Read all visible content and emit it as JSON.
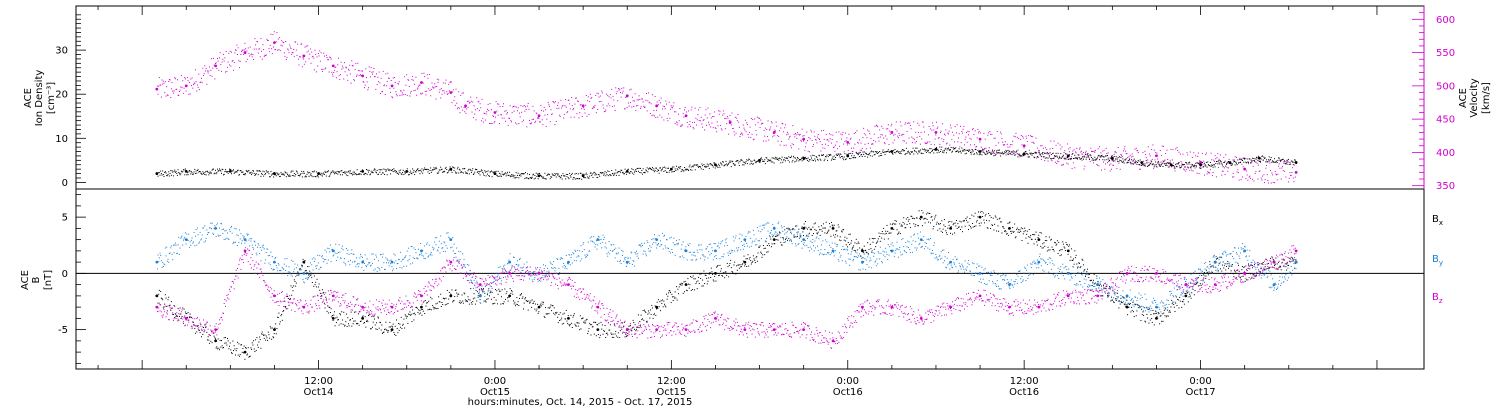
{
  "chart_data": [
    {
      "type": "scatter",
      "panel": "density-velocity",
      "ylabel_left": [
        "ACE",
        "Ion Density",
        "[cm⁻³]"
      ],
      "ylabel_right": [
        "ACE",
        "Velocity",
        "[km/s]"
      ],
      "ylim_left": [
        -1.5,
        40
      ],
      "ylim_right": [
        345,
        620
      ],
      "yticks_left": [
        "0",
        "10",
        "20",
        "30"
      ],
      "yticks_right": [
        "350",
        "400",
        "450",
        "500",
        "550",
        "600"
      ],
      "series": [
        {
          "color": "#000000",
          "axis": "left",
          "x": [
            1.0,
            3,
            6,
            9,
            12,
            15,
            18,
            21,
            24,
            27,
            30,
            33,
            36,
            39,
            42,
            45,
            48,
            51,
            54,
            57,
            60,
            63,
            66,
            68,
            70,
            72,
            74,
            76,
            78.5
          ],
          "y": [
            2.0,
            2.5,
            2.5,
            2.0,
            2.0,
            2.5,
            2.5,
            3.0,
            2.0,
            1.5,
            1.5,
            2.5,
            3.0,
            4.0,
            5.0,
            5.5,
            6.0,
            7.0,
            7.5,
            7.0,
            6.5,
            6.0,
            5.5,
            4.5,
            4.0,
            4.0,
            4.5,
            5.5,
            4.5
          ]
        },
        {
          "color": "#d000d0",
          "axis": "right",
          "x": [
            1.0,
            3,
            5,
            7,
            9,
            11,
            13,
            15,
            17,
            19,
            21,
            22,
            24,
            27,
            30,
            33,
            35,
            37,
            40,
            43,
            45,
            48,
            51,
            54,
            57,
            60,
            63,
            66,
            69,
            72,
            75,
            78.5
          ],
          "y": [
            495,
            500,
            530,
            550,
            565,
            545,
            530,
            515,
            500,
            505,
            490,
            470,
            460,
            455,
            470,
            485,
            470,
            455,
            445,
            430,
            420,
            415,
            430,
            430,
            420,
            410,
            395,
            390,
            395,
            385,
            375,
            370
          ]
        }
      ]
    },
    {
      "type": "scatter",
      "panel": "magnetic-field",
      "ylabel": [
        "ACE",
        "B",
        "[nT]"
      ],
      "ylim": [
        -8.5,
        7.5
      ],
      "yticks": [
        "-5",
        "0",
        "5"
      ],
      "series": [
        {
          "name": "Bₓ",
          "color": "#000000",
          "x": [
            1.0,
            3,
            5,
            7,
            9,
            11,
            13,
            15,
            17,
            19,
            21,
            23,
            25,
            27,
            29,
            31,
            33,
            35,
            37,
            39,
            41,
            43,
            45,
            47,
            49,
            51,
            53,
            55,
            57,
            59,
            61,
            63,
            65,
            67,
            69,
            71,
            73,
            75,
            77,
            78.5
          ],
          "y": [
            -2,
            -4,
            -6,
            -7,
            -5,
            1,
            -4,
            -4,
            -5,
            -3,
            -2,
            -2,
            -2,
            -3,
            -4,
            -5,
            -5,
            -3,
            -1,
            0,
            1,
            3,
            4,
            4,
            2,
            4,
            5,
            4,
            5,
            4,
            3,
            2,
            -1,
            -3,
            -4,
            -2,
            1,
            0,
            1,
            1
          ]
        },
        {
          "name": "Bᵧ",
          "color": "#1a80d8",
          "x": [
            1.0,
            3,
            5,
            7,
            9,
            11,
            13,
            15,
            17,
            19,
            21,
            23,
            25,
            27,
            29,
            31,
            33,
            35,
            37,
            39,
            41,
            43,
            45,
            47,
            49,
            51,
            53,
            55,
            57,
            59,
            61,
            63,
            65,
            67,
            69,
            71,
            73,
            75,
            77,
            78.5
          ],
          "y": [
            1,
            3,
            4,
            3,
            1,
            0,
            2,
            1,
            1,
            2,
            3,
            -2,
            1,
            0,
            1,
            3,
            1,
            3,
            2,
            2,
            3,
            4,
            3,
            2,
            1,
            2,
            3,
            1,
            0,
            -1,
            1,
            0,
            -1,
            -2,
            -3,
            -1,
            1,
            2,
            -1,
            1
          ]
        },
        {
          "name": "B_z",
          "color": "#d000d0",
          "x": [
            1.0,
            3,
            5,
            7,
            9,
            11,
            13,
            15,
            17,
            19,
            21,
            23,
            25,
            27,
            29,
            31,
            33,
            35,
            37,
            39,
            41,
            43,
            45,
            47,
            49,
            51,
            53,
            55,
            57,
            59,
            61,
            63,
            65,
            67,
            69,
            71,
            73,
            75,
            77,
            78.5
          ],
          "y": [
            -3,
            -4,
            -5,
            2,
            -2,
            -3,
            -2,
            -3,
            -3,
            -2,
            1,
            -1,
            0,
            0,
            -1,
            -3,
            -5,
            -5,
            -5,
            -4,
            -5,
            -5,
            -5,
            -6,
            -3,
            -3,
            -4,
            -3,
            -2,
            -3,
            -3,
            -2,
            -2,
            0,
            0,
            -1,
            -1,
            0,
            1,
            2
          ]
        }
      ]
    }
  ],
  "x_axis": {
    "range_hours": [
      -4.5,
      87.2
    ],
    "ticks": [
      {
        "h": 12,
        "top": "12:00",
        "bottom": "Oct14"
      },
      {
        "h": 24,
        "top": "0:00",
        "bottom": "Oct15"
      },
      {
        "h": 36,
        "top": "12:00",
        "bottom": "Oct15"
      },
      {
        "h": 48,
        "top": "0:00",
        "bottom": "Oct16"
      },
      {
        "h": 60,
        "top": "12:00",
        "bottom": "Oct16"
      },
      {
        "h": 72,
        "top": "0:00",
        "bottom": "Oct17"
      }
    ],
    "label": "hours:minutes, Oct. 14, 2015 - Oct. 17, 2015"
  },
  "legend": {
    "bx": "B",
    "bx_sub": "x",
    "by": "B",
    "by_sub": "y",
    "bz": "B",
    "bz_sub": "z"
  },
  "colors": {
    "density": "#000000",
    "velocity": "#d000d0",
    "bx": "#000000",
    "by": "#1a80d8",
    "bz": "#d000d0"
  }
}
